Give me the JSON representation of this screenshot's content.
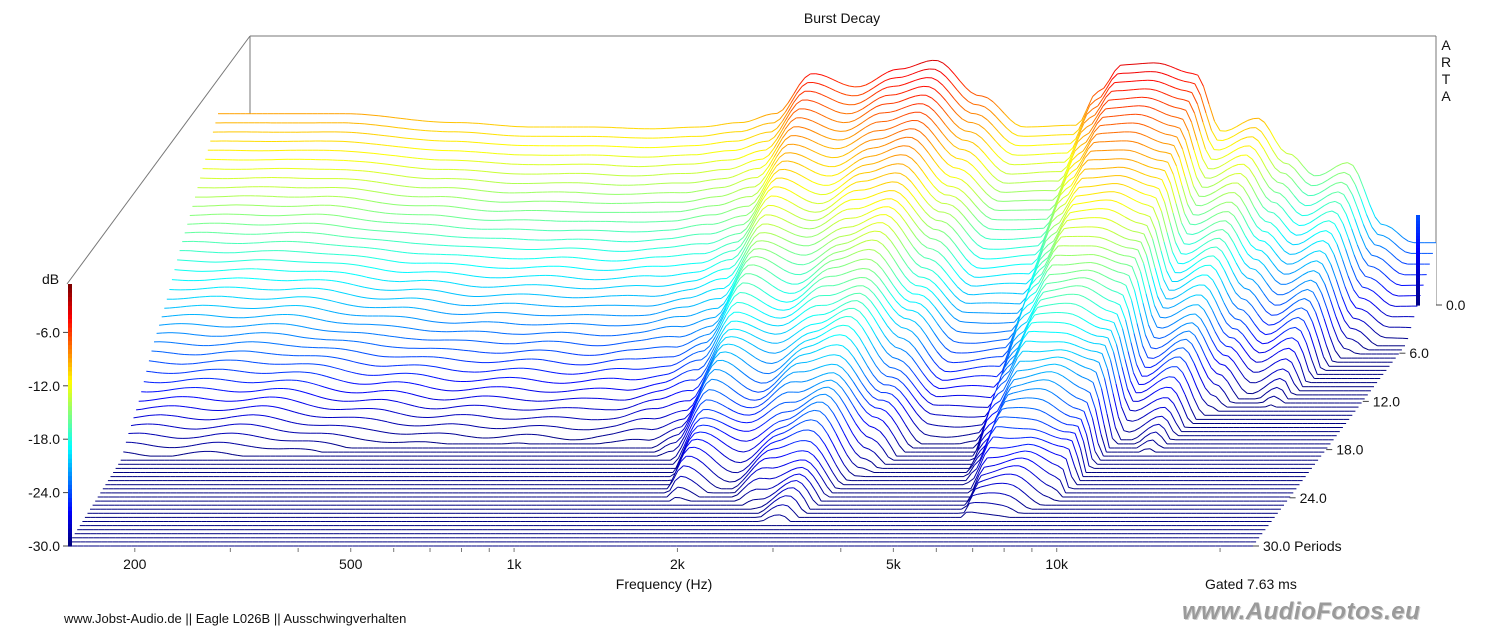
{
  "chart_data": {
    "type": "waterfall-3d",
    "title": "Burst Decay",
    "xlabel": "Frequency (Hz)",
    "x_scale": "log",
    "xlim": [
      150,
      23000
    ],
    "x_ticks": [
      200,
      500,
      1000,
      2000,
      5000,
      10000
    ],
    "x_tick_labels": [
      "200",
      "500",
      "1k",
      "2k",
      "5k",
      "10k"
    ],
    "zlabel": "dB",
    "zlim": [
      -30,
      0
    ],
    "z_ticks": [
      0,
      -6,
      -12,
      -18,
      -24,
      -30
    ],
    "z_tick_labels": [
      "0.0",
      "-6.0",
      "-12.0",
      "-18.0",
      "-24.0",
      "-30.0"
    ],
    "z_axis_left_labels": [
      "-6.0",
      "-12.0",
      "-18.0",
      "-24.0",
      "-30.0"
    ],
    "y_axis_label": "Periods",
    "ylim": [
      0,
      30
    ],
    "y_tick_labels": [
      "0.0",
      "6.0",
      "12.0",
      "18.0",
      "24.0",
      "30.0 Periods"
    ],
    "colormap": "jet",
    "front_slice_db": {
      "freq_hz": [
        160,
        250,
        400,
        550,
        700,
        900,
        1100,
        1300,
        1500,
        1750,
        2100,
        2500,
        2900,
        3500,
        4200,
        5200,
        5700,
        6300,
        7200,
        8500,
        9500,
        11000,
        12500,
        14000,
        16000,
        18500,
        21000
      ],
      "db": [
        -8.5,
        -8.5,
        -9.5,
        -10.0,
        -10.0,
        -10.2,
        -10.0,
        -9.5,
        -8.5,
        -4.0,
        -5.5,
        -3.5,
        -2.5,
        -6.5,
        -10.0,
        -9.8,
        -6.0,
        -3.0,
        -2.8,
        -4.0,
        -10.5,
        -9.0,
        -13.0,
        -15.5,
        -14.0,
        -21.0,
        -23.0
      ]
    },
    "gated": "Gated 7.63 ms",
    "corner_label": [
      "A",
      "R",
      "T",
      "A"
    ]
  },
  "footer": "www.Jobst-Audio.de  ||  Eagle L026B  ||  Ausschwingverhalten",
  "watermark": "www.AudioFotos.eu"
}
